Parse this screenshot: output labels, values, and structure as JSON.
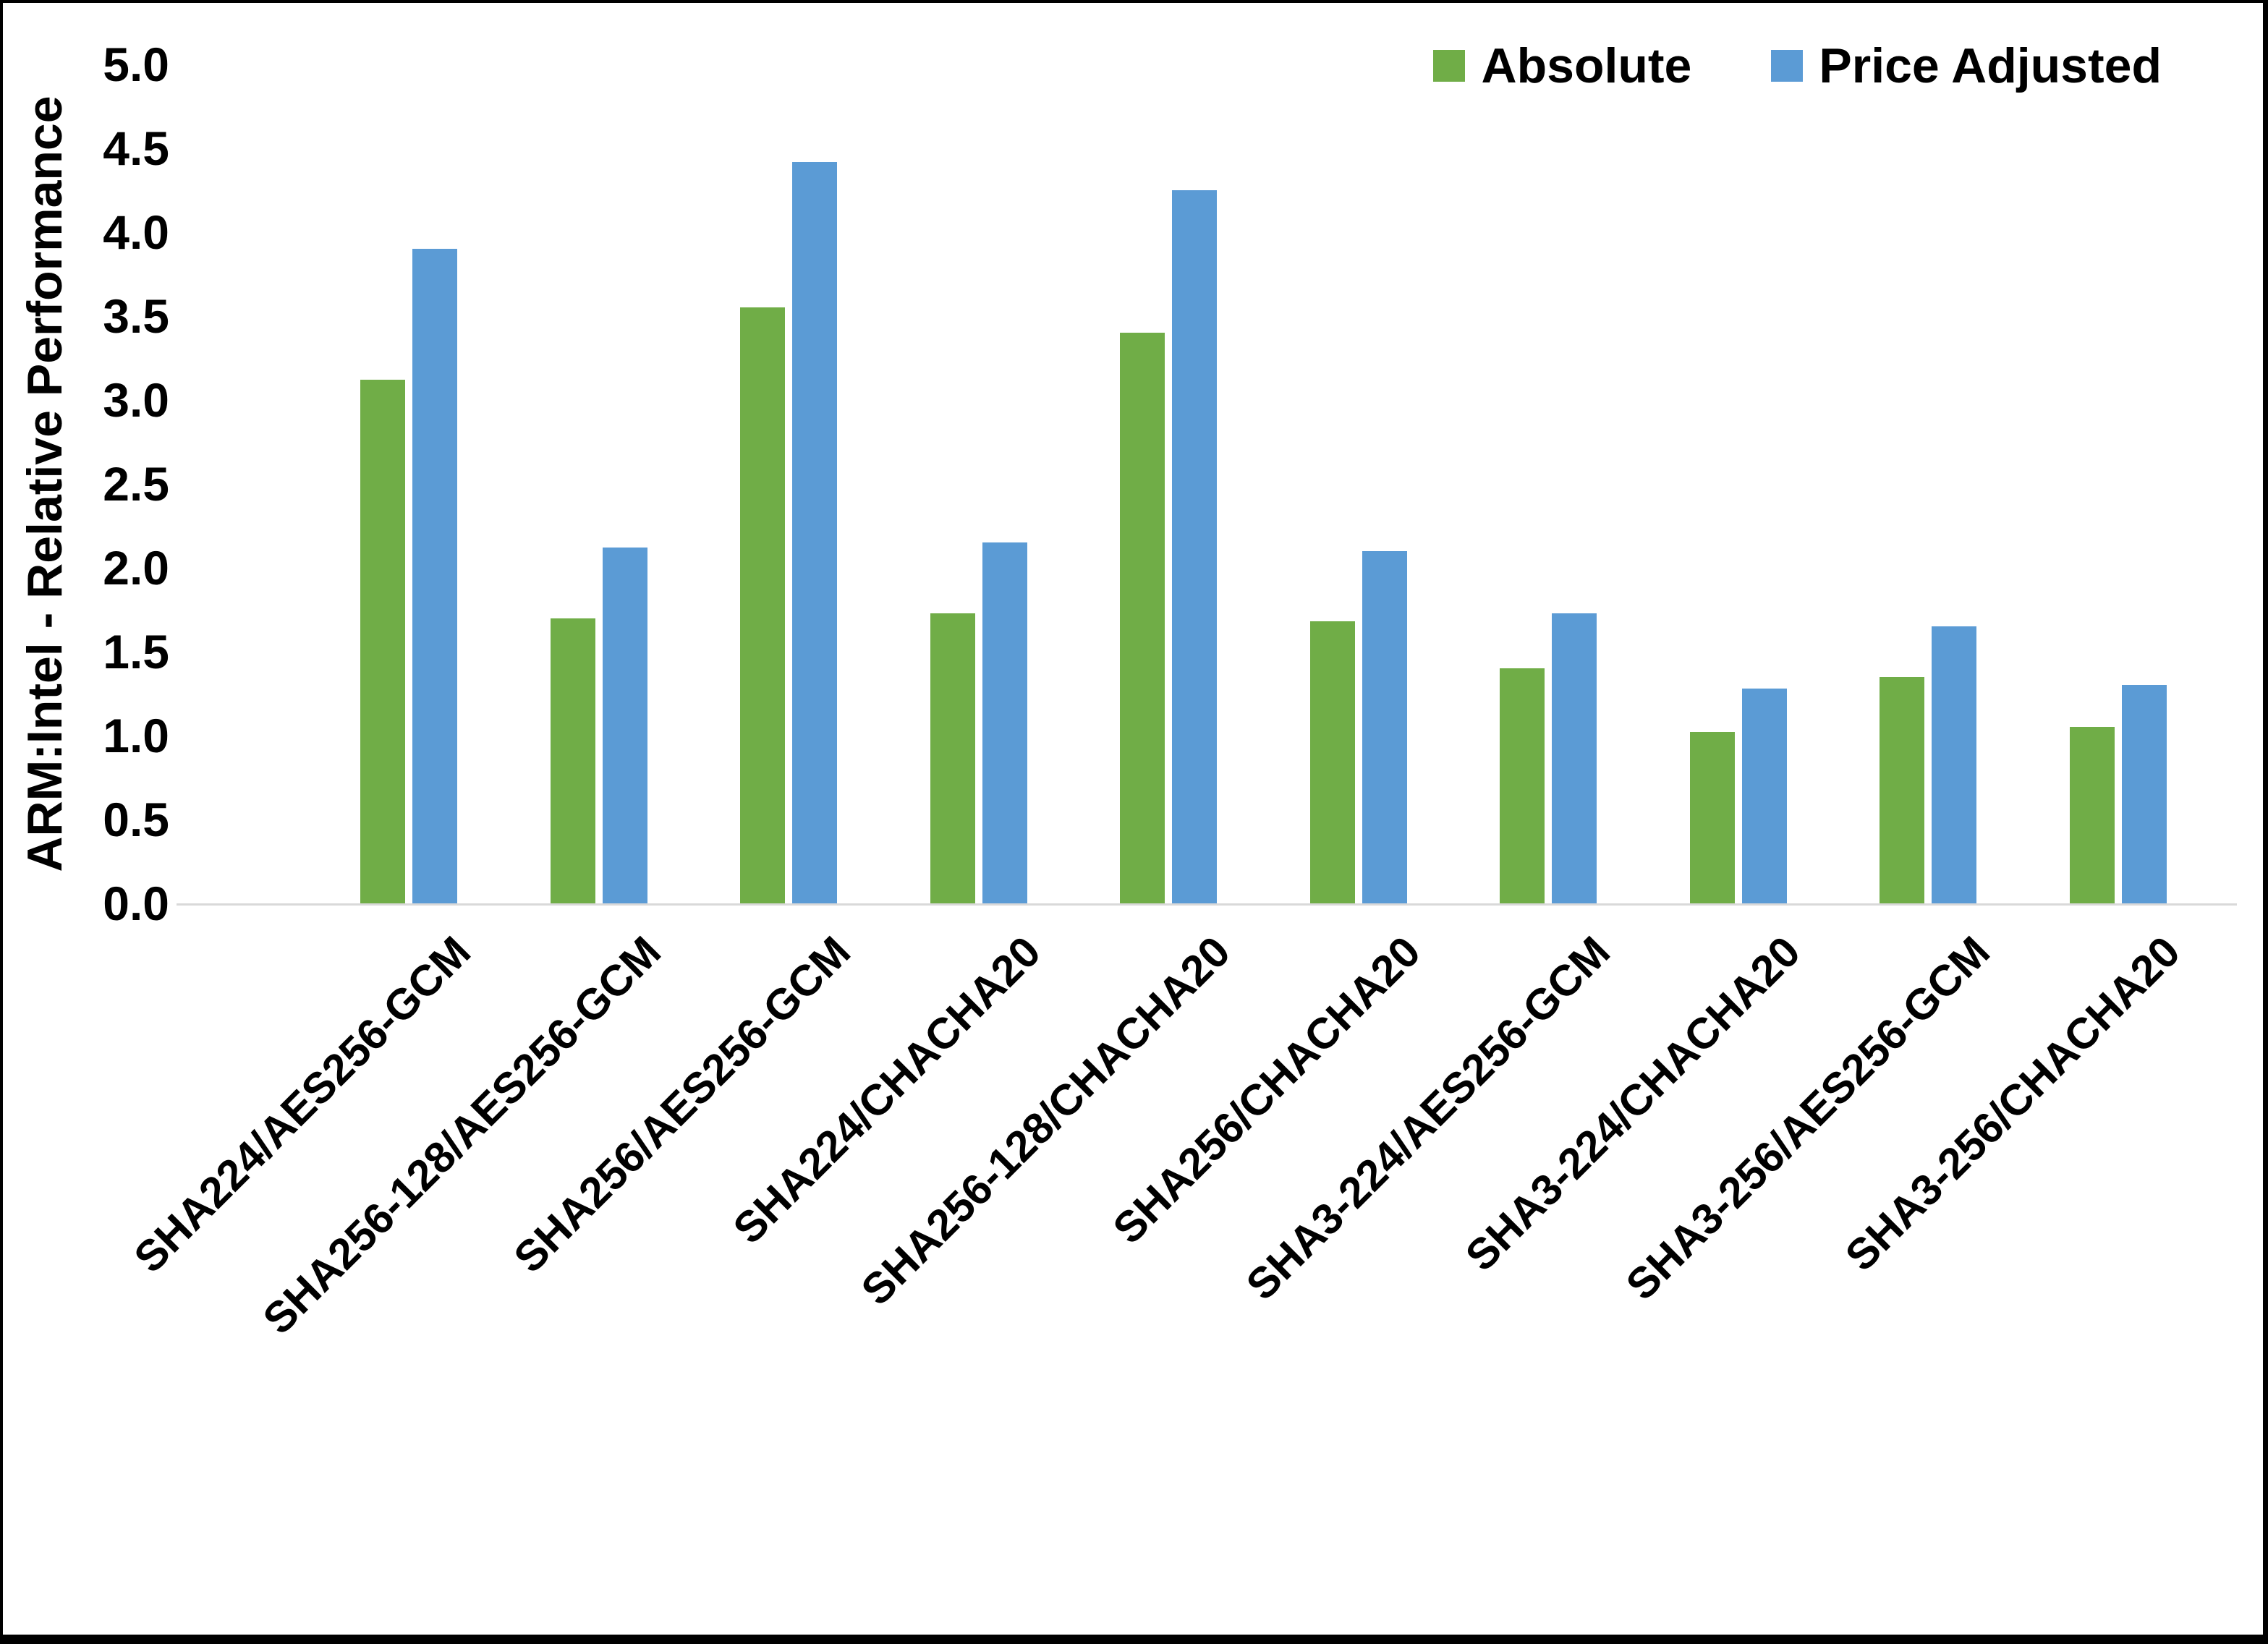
{
  "chart_data": {
    "type": "bar",
    "title": "",
    "xlabel": "",
    "ylabel": "ARM:Intel - Relative Performance",
    "ylim": [
      0,
      5
    ],
    "ytick_step": 0.5,
    "yticks": [
      "0.0",
      "0.5",
      "1.0",
      "1.5",
      "2.0",
      "2.5",
      "3.0",
      "3.5",
      "4.0",
      "4.5",
      "5.0"
    ],
    "grid": false,
    "legend_position": "top-right",
    "categories": [
      "SHA224/AES256-GCM",
      "SHA256-128/AES256-GCM",
      "SHA256/AES256-GCM",
      "SHA224/CHACHA20",
      "SHA256-128/CHACHA20",
      "SHA256/CHACHA20",
      "SHA3-224/AES256-GCM",
      "SHA3-224/CHACHA20",
      "SHA3-256/AES256-GCM",
      "SHA3-256/CHACHA20"
    ],
    "series": [
      {
        "name": "Absolute",
        "color": "#70AD47",
        "values": [
          3.12,
          1.7,
          3.55,
          1.73,
          3.4,
          1.68,
          1.4,
          1.02,
          1.35,
          1.05
        ]
      },
      {
        "name": "Price Adjusted",
        "color": "#5B9BD5",
        "values": [
          3.9,
          2.12,
          4.42,
          2.15,
          4.25,
          2.1,
          1.73,
          1.28,
          1.65,
          1.3
        ]
      }
    ]
  },
  "colors": {
    "axis_line": "#d9d9d9",
    "text": "#000000",
    "background": "#ffffff"
  }
}
